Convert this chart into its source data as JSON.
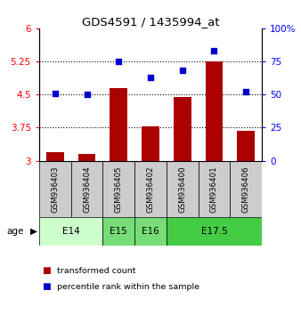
{
  "title": "GDS4591 / 1435994_at",
  "samples": [
    "GSM936403",
    "GSM936404",
    "GSM936405",
    "GSM936402",
    "GSM936400",
    "GSM936401",
    "GSM936406"
  ],
  "transformed_count": [
    3.2,
    3.15,
    4.65,
    3.77,
    4.45,
    5.25,
    3.68
  ],
  "percentile_rank": [
    51,
    50,
    75,
    63,
    68,
    83,
    52
  ],
  "age_groups": [
    {
      "label": "E14",
      "start": 0,
      "end": 1,
      "color": "#ccffcc"
    },
    {
      "label": "E15",
      "start": 2,
      "end": 2,
      "color": "#88ee88"
    },
    {
      "label": "E16",
      "start": 3,
      "end": 3,
      "color": "#88ee88"
    },
    {
      "label": "E17.5",
      "start": 4,
      "end": 6,
      "color": "#44cc44"
    }
  ],
  "bar_color": "#aa0000",
  "dot_color": "#0000cc",
  "ylim_left": [
    3.0,
    6.0
  ],
  "ylim_right": [
    0,
    100
  ],
  "yticks_left": [
    3.0,
    3.75,
    4.5,
    5.25,
    6.0
  ],
  "yticks_right": [
    0,
    25,
    50,
    75,
    100
  ],
  "ytick_labels_left": [
    "3",
    "3.75",
    "4.5",
    "5.25",
    "6"
  ],
  "ytick_labels_right": [
    "0",
    "25",
    "50",
    "75",
    "100%"
  ],
  "dotted_lines": [
    3.75,
    4.5,
    5.25
  ],
  "legend_red": "transformed count",
  "legend_blue": "percentile rank within the sample",
  "age_label": "age",
  "sample_bg": "#cccccc"
}
